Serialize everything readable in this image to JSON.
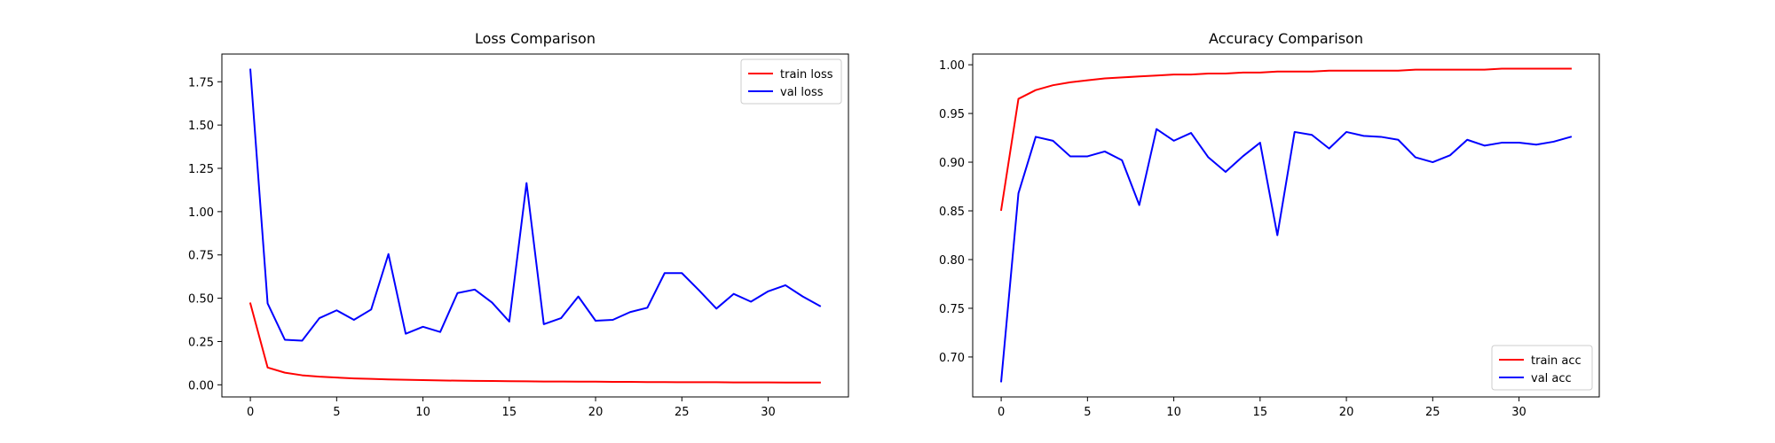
{
  "chart_data": [
    {
      "type": "line",
      "title": "Loss Comparison",
      "xlabel": "",
      "ylabel": "",
      "xlim": [
        -1.65,
        34.65
      ],
      "ylim": [
        -0.07,
        1.91
      ],
      "xticks": [
        0,
        5,
        10,
        15,
        20,
        25,
        30
      ],
      "xtick_labels": [
        "0",
        "5",
        "10",
        "15",
        "20",
        "25",
        "30"
      ],
      "yticks": [
        0.0,
        0.25,
        0.5,
        0.75,
        1.0,
        1.25,
        1.5,
        1.75
      ],
      "ytick_labels": [
        "0.00",
        "0.25",
        "0.50",
        "0.75",
        "1.00",
        "1.25",
        "1.50",
        "1.75"
      ],
      "grid": false,
      "legend_position": "top-right",
      "x": [
        0,
        1,
        2,
        3,
        4,
        5,
        6,
        7,
        8,
        9,
        10,
        11,
        12,
        13,
        14,
        15,
        16,
        17,
        18,
        19,
        20,
        21,
        22,
        23,
        24,
        25,
        26,
        27,
        28,
        29,
        30,
        31,
        32,
        33
      ],
      "series": [
        {
          "name": "train loss",
          "color": "#ff0000",
          "values": [
            0.47,
            0.1,
            0.07,
            0.055,
            0.047,
            0.042,
            0.037,
            0.034,
            0.031,
            0.029,
            0.027,
            0.025,
            0.024,
            0.023,
            0.022,
            0.021,
            0.02,
            0.019,
            0.019,
            0.018,
            0.018,
            0.017,
            0.017,
            0.016,
            0.016,
            0.015,
            0.015,
            0.015,
            0.014,
            0.014,
            0.014,
            0.013,
            0.013,
            0.013
          ]
        },
        {
          "name": "val loss",
          "color": "#0000ff",
          "values": [
            1.82,
            0.47,
            0.26,
            0.255,
            0.385,
            0.43,
            0.375,
            0.435,
            0.755,
            0.295,
            0.335,
            0.305,
            0.53,
            0.55,
            0.475,
            0.365,
            1.165,
            0.35,
            0.385,
            0.51,
            0.37,
            0.375,
            0.42,
            0.445,
            0.645,
            0.645,
            0.545,
            0.44,
            0.525,
            0.48,
            0.54,
            0.575,
            0.51,
            0.455
          ]
        }
      ]
    },
    {
      "type": "line",
      "title": "Accuracy Comparison",
      "xlabel": "",
      "ylabel": "",
      "xlim": [
        -1.65,
        34.65
      ],
      "ylim": [
        0.659,
        1.011
      ],
      "xticks": [
        0,
        5,
        10,
        15,
        20,
        25,
        30
      ],
      "xtick_labels": [
        "0",
        "5",
        "10",
        "15",
        "20",
        "25",
        "30"
      ],
      "yticks": [
        0.7,
        0.75,
        0.8,
        0.85,
        0.9,
        0.95,
        1.0
      ],
      "ytick_labels": [
        "0.70",
        "0.75",
        "0.80",
        "0.85",
        "0.90",
        "0.95",
        "1.00"
      ],
      "grid": false,
      "legend_position": "bottom-right",
      "x": [
        0,
        1,
        2,
        3,
        4,
        5,
        6,
        7,
        8,
        9,
        10,
        11,
        12,
        13,
        14,
        15,
        16,
        17,
        18,
        19,
        20,
        21,
        22,
        23,
        24,
        25,
        26,
        27,
        28,
        29,
        30,
        31,
        32,
        33
      ],
      "series": [
        {
          "name": "train acc",
          "color": "#ff0000",
          "values": [
            0.851,
            0.965,
            0.974,
            0.979,
            0.982,
            0.984,
            0.986,
            0.987,
            0.988,
            0.989,
            0.99,
            0.99,
            0.991,
            0.991,
            0.992,
            0.992,
            0.993,
            0.993,
            0.993,
            0.994,
            0.994,
            0.994,
            0.994,
            0.994,
            0.995,
            0.995,
            0.995,
            0.995,
            0.995,
            0.996,
            0.996,
            0.996,
            0.996,
            0.996
          ]
        },
        {
          "name": "val acc",
          "color": "#0000ff",
          "values": [
            0.675,
            0.868,
            0.926,
            0.922,
            0.906,
            0.906,
            0.911,
            0.902,
            0.856,
            0.934,
            0.922,
            0.93,
            0.905,
            0.89,
            0.906,
            0.92,
            0.825,
            0.931,
            0.928,
            0.914,
            0.931,
            0.927,
            0.926,
            0.923,
            0.905,
            0.9,
            0.907,
            0.923,
            0.917,
            0.92,
            0.92,
            0.918,
            0.921,
            0.926
          ]
        }
      ]
    }
  ]
}
